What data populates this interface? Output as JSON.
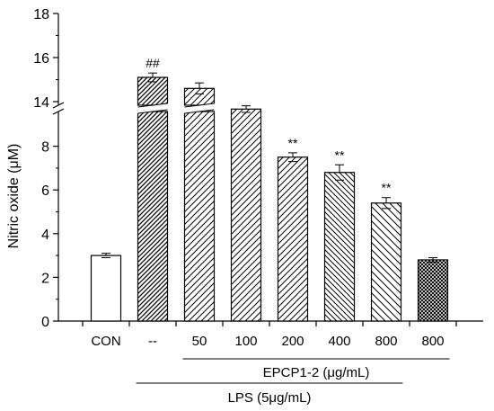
{
  "chart_data": {
    "type": "bar",
    "ylabel": "Nitric oxide (μM)",
    "categories": [
      "CON",
      "--",
      "50",
      "100",
      "200",
      "400",
      "800",
      "800"
    ],
    "values": [
      3.0,
      15.1,
      14.6,
      9.7,
      7.5,
      6.8,
      5.4,
      2.8
    ],
    "errors": [
      0.1,
      0.2,
      0.25,
      0.15,
      0.2,
      0.35,
      0.25,
      0.1
    ],
    "annotations": [
      "",
      "##",
      "",
      "",
      "**",
      "**",
      "**",
      ""
    ],
    "bar_fills": [
      "#ffffff",
      "hatch-dense",
      "hatch-sparse",
      "hatch-sparse",
      "hatch-sparse",
      "hatch-back",
      "hatch-back-sparse",
      "crosshatch"
    ],
    "axis_break": [
      10,
      14
    ],
    "ylim": [
      0,
      18
    ],
    "y_ticks": [
      0,
      2,
      4,
      6,
      8,
      14,
      16,
      18
    ],
    "y_tick_labels": [
      "0",
      "2",
      "4",
      "6",
      "8",
      "14",
      "16",
      "18"
    ],
    "grid": false,
    "groups": [
      {
        "label": "EPCP1-2 (μg/mL)",
        "from": 2,
        "to": 7
      },
      {
        "label": "LPS (5μg/mL)",
        "from": 1,
        "to": 6
      }
    ]
  },
  "colors": {
    "ink": "#000000",
    "background": "#ffffff"
  }
}
